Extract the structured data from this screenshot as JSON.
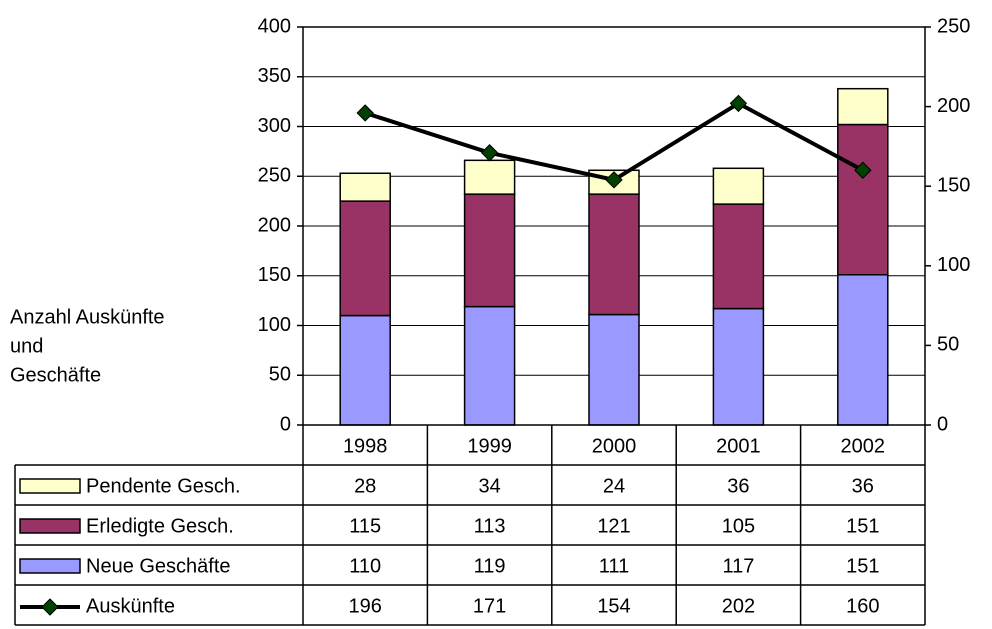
{
  "chart_data": {
    "type": "bar",
    "categories": [
      "1998",
      "1999",
      "2000",
      "2001",
      "2002"
    ],
    "ylabel": [
      "Anzahl Auskünfte",
      "und",
      "Geschäfte"
    ],
    "series": [
      {
        "name": "Pendente Gesch.",
        "color": "#ffffcc",
        "values": [
          28,
          34,
          24,
          36,
          36
        ]
      },
      {
        "name": "Erledigte Gesch.",
        "color": "#993366",
        "values": [
          115,
          113,
          121,
          105,
          151
        ]
      },
      {
        "name": "Neue Geschäfte",
        "color": "#9999ff",
        "values": [
          110,
          119,
          111,
          117,
          151
        ]
      },
      {
        "name": "Auskünfte",
        "color": "#000000",
        "marker_color": "#004000",
        "type": "line",
        "axis": "y2",
        "values": [
          196,
          171,
          154,
          202,
          160
        ]
      }
    ],
    "stacked": true,
    "ylim": [
      0,
      400
    ],
    "yticks": [
      0,
      50,
      100,
      150,
      200,
      250,
      300,
      350,
      400
    ],
    "y2lim": [
      0,
      250
    ],
    "y2ticks": [
      0,
      50,
      100,
      150,
      200,
      250
    ],
    "grid": true
  }
}
